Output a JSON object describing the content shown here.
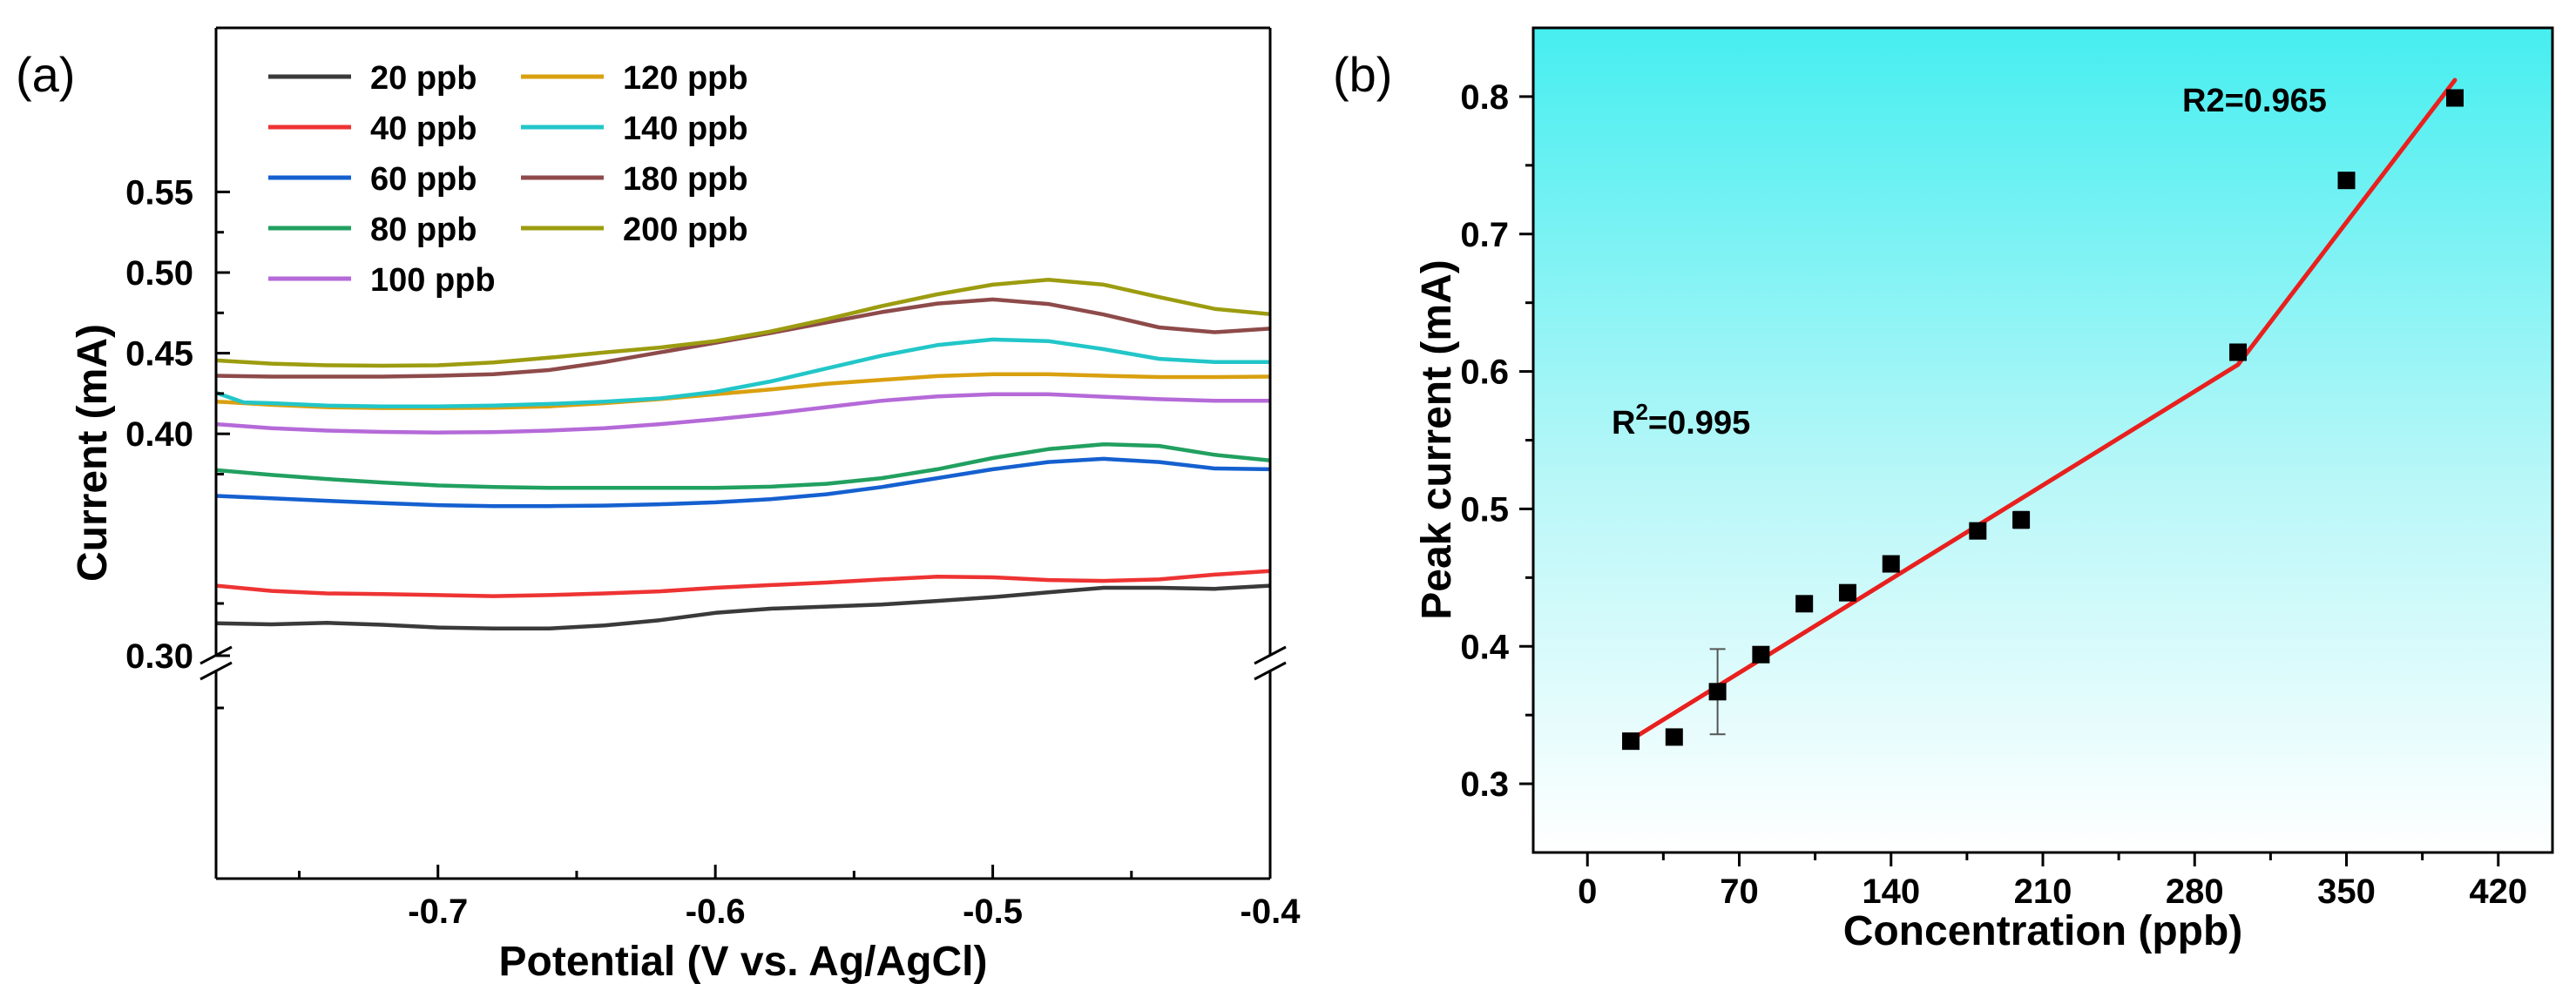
{
  "chart_data": [
    {
      "panel": "(a)",
      "type": "line",
      "xlabel": "Potential (V vs. Ag/AgCl)",
      "ylabel": "Current (mA)",
      "xlim": [
        -0.78,
        -0.4
      ],
      "x_ticks": [
        -0.7,
        -0.6,
        -0.5,
        -0.4
      ],
      "x_tick_labels": [
        "-0.7",
        "-0.6",
        "-0.5",
        "-0.4"
      ],
      "y_ticks": [
        0.3,
        0.4,
        0.45,
        0.5,
        0.55
      ],
      "y_tick_labels": [
        "0.30",
        "0.40",
        "0.45",
        "0.50",
        "0.55"
      ],
      "axis_break": "between 0.30 and 0.40",
      "legend_position": "top-left",
      "series": [
        {
          "name": "20 ppb",
          "color": "#3a3a3a",
          "x": [
            -0.78,
            -0.76,
            -0.74,
            -0.72,
            -0.7,
            -0.68,
            -0.66,
            -0.64,
            -0.62,
            -0.6,
            -0.58,
            -0.56,
            -0.54,
            -0.52,
            -0.5,
            -0.48,
            -0.46,
            -0.44,
            -0.42,
            -0.4
          ],
          "values": [
            0.3155,
            0.315,
            0.3157,
            0.3148,
            0.3135,
            0.313,
            0.313,
            0.3145,
            0.317,
            0.3205,
            0.3225,
            0.3235,
            0.3245,
            0.3262,
            0.328,
            0.3303,
            0.3325,
            0.3325,
            0.332,
            0.3335
          ]
        },
        {
          "name": "40 ppb",
          "color": "#ee3333",
          "x": [
            -0.78,
            -0.76,
            -0.74,
            -0.72,
            -0.7,
            -0.68,
            -0.66,
            -0.64,
            -0.62,
            -0.6,
            -0.58,
            -0.56,
            -0.54,
            -0.52,
            -0.5,
            -0.48,
            -0.46,
            -0.44,
            -0.42,
            -0.4
          ],
          "values": [
            0.3335,
            0.331,
            0.3298,
            0.3295,
            0.329,
            0.3285,
            0.329,
            0.3298,
            0.3308,
            0.3325,
            0.3338,
            0.335,
            0.3365,
            0.3378,
            0.3375,
            0.3362,
            0.3358,
            0.3365,
            0.3388,
            0.3405
          ]
        },
        {
          "name": "60 ppb",
          "color": "#1560d0",
          "x": [
            -0.78,
            -0.76,
            -0.74,
            -0.72,
            -0.7,
            -0.68,
            -0.66,
            -0.64,
            -0.62,
            -0.6,
            -0.58,
            -0.56,
            -0.54,
            -0.52,
            -0.5,
            -0.48,
            -0.46,
            -0.44,
            -0.42,
            -0.4
          ],
          "values": [
            0.3615,
            0.36,
            0.3585,
            0.357,
            0.3558,
            0.3552,
            0.3552,
            0.3555,
            0.3563,
            0.3575,
            0.3595,
            0.3625,
            0.367,
            0.3725,
            0.378,
            0.3825,
            0.3845,
            0.3825,
            0.3785,
            0.378
          ]
        },
        {
          "name": "80 ppb",
          "color": "#21a060",
          "x": [
            -0.78,
            -0.76,
            -0.74,
            -0.72,
            -0.7,
            -0.68,
            -0.66,
            -0.64,
            -0.62,
            -0.6,
            -0.58,
            -0.56,
            -0.54,
            -0.52,
            -0.5,
            -0.48,
            -0.46,
            -0.44,
            -0.42,
            -0.4
          ],
          "values": [
            0.3775,
            0.3745,
            0.372,
            0.3698,
            0.368,
            0.367,
            0.3665,
            0.3665,
            0.3665,
            0.3665,
            0.3672,
            0.369,
            0.3725,
            0.378,
            0.385,
            0.3905,
            0.3935,
            0.3925,
            0.387,
            0.3835
          ]
        },
        {
          "name": "100 ppb",
          "color": "#b56ad8",
          "x": [
            -0.78,
            -0.76,
            -0.74,
            -0.72,
            -0.7,
            -0.68,
            -0.66,
            -0.64,
            -0.62,
            -0.6,
            -0.58,
            -0.56,
            -0.54,
            -0.52,
            -0.5,
            -0.48,
            -0.46,
            -0.44,
            -0.42,
            -0.4
          ],
          "values": [
            0.406,
            0.4035,
            0.402,
            0.4012,
            0.4008,
            0.401,
            0.402,
            0.4035,
            0.406,
            0.409,
            0.4125,
            0.4165,
            0.4205,
            0.4232,
            0.4245,
            0.4245,
            0.423,
            0.4215,
            0.4205,
            0.4205
          ]
        },
        {
          "name": "120 ppb",
          "color": "#d9a010",
          "x": [
            -0.78,
            -0.76,
            -0.74,
            -0.72,
            -0.7,
            -0.68,
            -0.66,
            -0.64,
            -0.62,
            -0.6,
            -0.58,
            -0.56,
            -0.54,
            -0.52,
            -0.5,
            -0.48,
            -0.46,
            -0.44,
            -0.42,
            -0.4
          ],
          "values": [
            0.42,
            0.418,
            0.4165,
            0.416,
            0.416,
            0.4162,
            0.417,
            0.419,
            0.4215,
            0.4245,
            0.4275,
            0.431,
            0.4335,
            0.4358,
            0.437,
            0.437,
            0.436,
            0.4352,
            0.4352,
            0.4355
          ]
        },
        {
          "name": "140 ppb",
          "color": "#22c6c8",
          "x": [
            -0.78,
            -0.77,
            -0.76,
            -0.74,
            -0.72,
            -0.7,
            -0.68,
            -0.66,
            -0.64,
            -0.62,
            -0.6,
            -0.58,
            -0.56,
            -0.54,
            -0.52,
            -0.5,
            -0.48,
            -0.46,
            -0.44,
            -0.42,
            -0.4
          ],
          "values": [
            0.4255,
            0.4195,
            0.419,
            0.4175,
            0.417,
            0.417,
            0.4175,
            0.4185,
            0.42,
            0.422,
            0.426,
            0.4325,
            0.4405,
            0.4485,
            0.455,
            0.4585,
            0.4575,
            0.4525,
            0.4465,
            0.4445,
            0.4445
          ]
        },
        {
          "name": "180 ppb",
          "color": "#8e4a4a",
          "x": [
            -0.78,
            -0.76,
            -0.74,
            -0.72,
            -0.7,
            -0.68,
            -0.66,
            -0.64,
            -0.62,
            -0.6,
            -0.58,
            -0.56,
            -0.54,
            -0.52,
            -0.5,
            -0.48,
            -0.46,
            -0.44,
            -0.42,
            -0.4
          ],
          "values": [
            0.436,
            0.4355,
            0.4355,
            0.4355,
            0.436,
            0.437,
            0.4395,
            0.4445,
            0.4505,
            0.4565,
            0.4625,
            0.469,
            0.4755,
            0.4808,
            0.4833,
            0.4805,
            0.474,
            0.466,
            0.463,
            0.4652
          ]
        },
        {
          "name": "200 ppb",
          "color": "#9c9c10",
          "x": [
            -0.78,
            -0.76,
            -0.74,
            -0.72,
            -0.7,
            -0.68,
            -0.66,
            -0.64,
            -0.62,
            -0.6,
            -0.58,
            -0.56,
            -0.54,
            -0.52,
            -0.5,
            -0.48,
            -0.46,
            -0.44,
            -0.42,
            -0.4
          ],
          "values": [
            0.4455,
            0.4435,
            0.4425,
            0.4422,
            0.4425,
            0.4442,
            0.4472,
            0.4505,
            0.4535,
            0.4575,
            0.4635,
            0.471,
            0.4792,
            0.4865,
            0.4925,
            0.4955,
            0.4925,
            0.4848,
            0.4775,
            0.4742
          ]
        }
      ]
    },
    {
      "panel": "(b)",
      "type": "scatter",
      "xlabel": "Concentration (ppb)",
      "ylabel": "Peak current (mA)",
      "xlim": [
        -25,
        445
      ],
      "ylim": [
        0.25,
        0.85
      ],
      "x_ticks": [
        0,
        70,
        140,
        210,
        280,
        350,
        420
      ],
      "x_tick_labels": [
        "0",
        "70",
        "140",
        "210",
        "280",
        "350",
        "420"
      ],
      "y_ticks": [
        0.3,
        0.4,
        0.5,
        0.6,
        0.7,
        0.8
      ],
      "y_tick_labels": [
        "0.3",
        "0.4",
        "0.5",
        "0.6",
        "0.7",
        "0.8"
      ],
      "background": "gradient cyan (top) to white (bottom)",
      "points": {
        "name": "Peak current",
        "x": [
          20,
          40,
          60,
          80,
          100,
          120,
          140,
          180,
          200,
          300,
          350,
          400
        ],
        "values": [
          0.331,
          0.334,
          0.367,
          0.394,
          0.431,
          0.439,
          0.46,
          0.484,
          0.492,
          0.614,
          0.739,
          0.799
        ],
        "error": [
          0,
          0,
          0.031,
          0,
          0,
          0,
          0,
          0,
          0.006,
          0,
          0,
          0
        ]
      },
      "fits": [
        {
          "name": "fit-low",
          "x": [
            20,
            300
          ],
          "values": [
            0.332,
            0.605
          ],
          "color": "#e8201e"
        },
        {
          "name": "fit-high",
          "x": [
            300,
            400
          ],
          "values": [
            0.605,
            0.812
          ],
          "color": "#e8201e"
        }
      ],
      "annotations": [
        {
          "name": "r2-high",
          "text": "R2=0.965"
        },
        {
          "name": "r2-low",
          "prefix": "R",
          "superscript": "2",
          "suffix": "=0.995"
        }
      ]
    }
  ]
}
